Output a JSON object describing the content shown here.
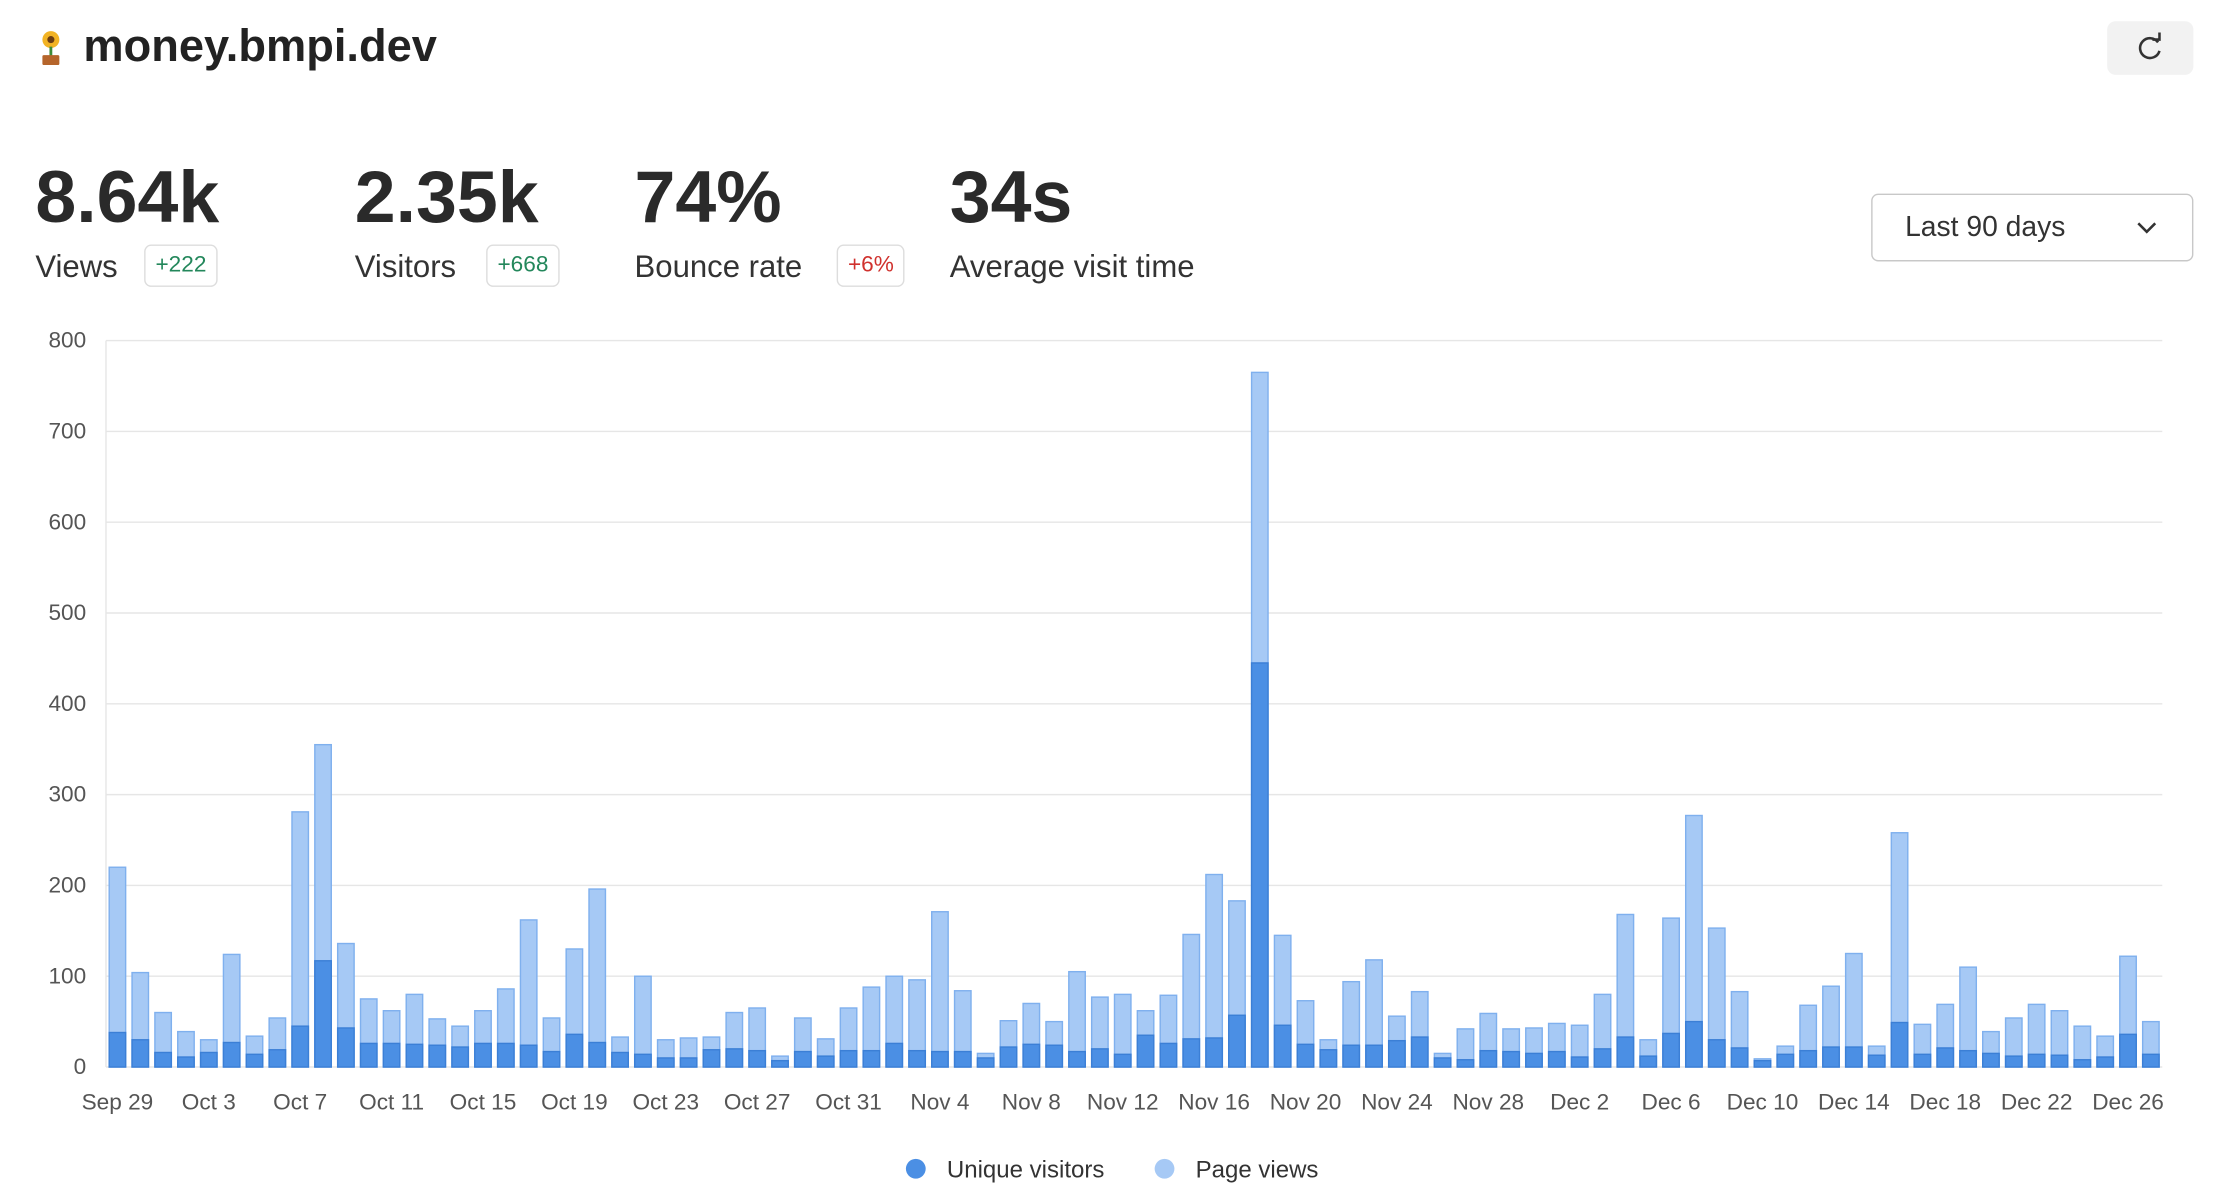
{
  "header": {
    "title": "money.bmpi.dev"
  },
  "stats": [
    {
      "value": "8.64k",
      "label": "Views",
      "change": "+222"
    },
    {
      "value": "2.35k",
      "label": "Visitors",
      "change": "+668"
    },
    {
      "value": "74%",
      "label": "Bounce rate",
      "change": "+6%"
    },
    {
      "value": "34s",
      "label": "Average visit time"
    }
  ],
  "range_select": {
    "value": "Last 90 days"
  },
  "chart_data": {
    "type": "bar",
    "categories": [
      "Sep 29",
      null,
      null,
      null,
      "Oct 3",
      null,
      null,
      null,
      "Oct 7",
      null,
      null,
      null,
      "Oct 11",
      null,
      null,
      null,
      "Oct 15",
      null,
      null,
      null,
      "Oct 19",
      null,
      null,
      null,
      "Oct 23",
      null,
      null,
      null,
      "Oct 27",
      null,
      null,
      null,
      "Oct 31",
      null,
      null,
      null,
      "Nov 4",
      null,
      null,
      null,
      "Nov 8",
      null,
      null,
      null,
      "Nov 12",
      null,
      null,
      null,
      "Nov 16",
      null,
      null,
      null,
      "Nov 20",
      null,
      null,
      null,
      "Nov 24",
      null,
      null,
      null,
      "Nov 28",
      null,
      null,
      null,
      "Dec 2",
      null,
      null,
      null,
      "Dec 6",
      null,
      null,
      null,
      "Dec 10",
      null,
      null,
      null,
      "Dec 14",
      null,
      null,
      null,
      "Dec 18",
      null,
      null,
      null,
      "Dec 22",
      null,
      null,
      null,
      "Dec 26",
      null
    ],
    "series": [
      {
        "name": "Unique visitors",
        "color": "#4b8fe4",
        "values": [
          38,
          30,
          16,
          11,
          16,
          27,
          14,
          19,
          45,
          117,
          43,
          26,
          26,
          25,
          24,
          22,
          26,
          26,
          24,
          17,
          36,
          27,
          16,
          14,
          10,
          10,
          19,
          20,
          18,
          7,
          17,
          12,
          18,
          18,
          26,
          18,
          17,
          17,
          10,
          22,
          25,
          24,
          17,
          20,
          14,
          35,
          26,
          31,
          32,
          57,
          445,
          46,
          25,
          19,
          24,
          24,
          29,
          33,
          10,
          8,
          18,
          17,
          15,
          17,
          11,
          20,
          33,
          12,
          37,
          50,
          30,
          21,
          7,
          14,
          18,
          22,
          22,
          13,
          49,
          14,
          21,
          18,
          15,
          12,
          14,
          13,
          8,
          11,
          36,
          14
        ]
      },
      {
        "name": "Page views",
        "color": "#a6c9f5",
        "values": [
          220,
          104,
          60,
          39,
          30,
          124,
          34,
          54,
          281,
          355,
          136,
          75,
          62,
          80,
          53,
          45,
          62,
          86,
          162,
          54,
          130,
          196,
          33,
          100,
          30,
          32,
          33,
          60,
          65,
          12,
          54,
          31,
          65,
          88,
          100,
          96,
          171,
          84,
          15,
          51,
          70,
          50,
          105,
          77,
          80,
          62,
          79,
          146,
          212,
          183,
          765,
          145,
          73,
          30,
          94,
          118,
          56,
          83,
          15,
          42,
          59,
          42,
          43,
          48,
          46,
          80,
          168,
          30,
          164,
          277,
          153,
          83,
          9,
          23,
          68,
          89,
          125,
          23,
          258,
          47,
          69,
          110,
          39,
          54,
          69,
          62,
          45,
          34,
          122,
          50
        ]
      }
    ],
    "ylim": [
      0,
      800
    ],
    "yticks": [
      0,
      100,
      200,
      300,
      400,
      500,
      600,
      700,
      800
    ],
    "grid": true
  }
}
